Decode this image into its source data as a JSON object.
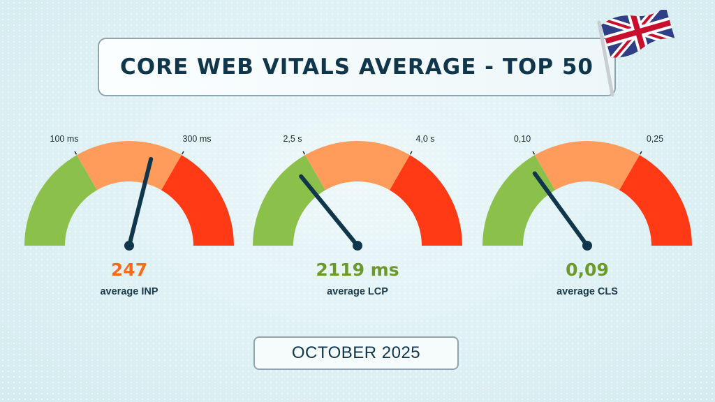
{
  "title": "CORE WEB VITALS AVERAGE - TOP 50",
  "date_label": "OCTOBER 2025",
  "flag": {
    "icon": "uk-flag-icon",
    "colors": {
      "blue": "#2f3f86",
      "red": "#c8102e",
      "white": "#ffffff"
    }
  },
  "colors": {
    "good": "#8bc14b",
    "needs_improvement": "#ff9c5c",
    "poor": "#ff3a14",
    "needle": "#10364b",
    "title": "#10364b"
  },
  "chart_data": [
    {
      "type": "gauge",
      "metric": "INP",
      "value_label": "247",
      "value_color": "#ff6a1a",
      "caption": "average INP",
      "thresholds": [
        100,
        300
      ],
      "threshold_labels": [
        "100 ms",
        "300 ms"
      ],
      "value": 247,
      "zones": [
        "good",
        "needs-improvement",
        "poor"
      ]
    },
    {
      "type": "gauge",
      "metric": "LCP",
      "value_label": "2119 ms",
      "value_color": "#6b9a2a",
      "caption": "average LCP",
      "thresholds": [
        2.5,
        4.0
      ],
      "threshold_labels": [
        "2,5 s",
        "4,0 s"
      ],
      "value": 2.119,
      "zones": [
        "good",
        "needs-improvement",
        "poor"
      ]
    },
    {
      "type": "gauge",
      "metric": "CLS",
      "value_label": "0,09",
      "value_color": "#6b9a2a",
      "caption": "average CLS",
      "thresholds": [
        0.1,
        0.25
      ],
      "threshold_labels": [
        "0,10",
        "0,25"
      ],
      "value": 0.09,
      "zones": [
        "good",
        "needs-improvement",
        "poor"
      ]
    }
  ]
}
